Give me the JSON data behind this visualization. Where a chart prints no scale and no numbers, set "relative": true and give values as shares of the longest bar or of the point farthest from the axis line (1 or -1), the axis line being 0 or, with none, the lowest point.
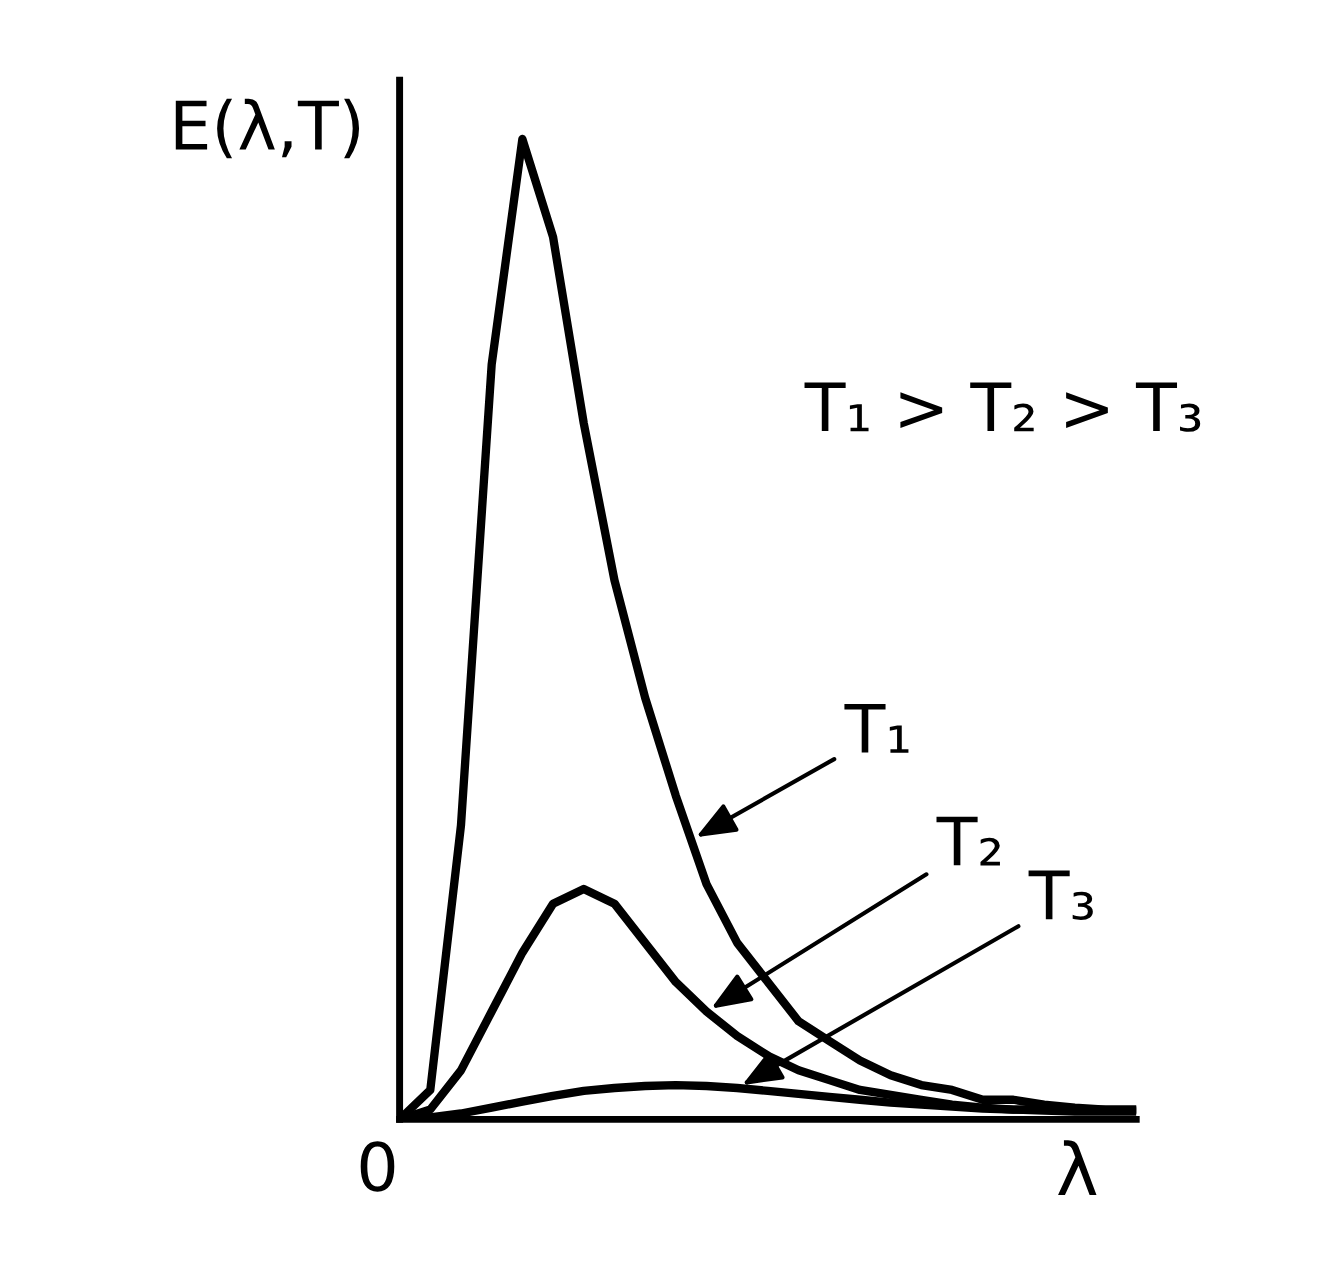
{
  "chart_data": {
    "type": "line",
    "relative": true,
    "ylabel": "E(λ,T)",
    "xlabel": "λ",
    "legend": "right",
    "grid": false,
    "marker": "none",
    "line_style": "solid",
    "categories": [
      null,
      null,
      null,
      null,
      null,
      null,
      null,
      null,
      null,
      null,
      null,
      null,
      null,
      null,
      null,
      null,
      null,
      null,
      null,
      null,
      null,
      null,
      null,
      null,
      null
    ],
    "series": [
      {
        "name": "T₁",
        "color": "#000000",
        "values": [
          0,
          0.03,
          0.3,
          0.77,
          1.0,
          0.9,
          0.71,
          0.55,
          0.43,
          0.33,
          0.24,
          0.18,
          0.14,
          0.1,
          0.08,
          0.06,
          0.045,
          0.035,
          0.03,
          0.02,
          0.02,
          0.015,
          0.012,
          0.01,
          0.01
        ]
      },
      {
        "name": "T₂",
        "color": "#000000",
        "values": [
          0,
          0.01,
          0.05,
          0.11,
          0.17,
          0.22,
          0.235,
          0.22,
          0.18,
          0.14,
          0.11,
          0.085,
          0.065,
          0.05,
          0.04,
          0.03,
          0.025,
          0.02,
          0.015,
          0.012,
          0.01,
          0.01,
          0.01,
          0.01,
          0.01
        ]
      },
      {
        "name": "T₃",
        "color": "#000000",
        "values": [
          0,
          0.002,
          0.006,
          0.012,
          0.018,
          0.024,
          0.029,
          0.032,
          0.034,
          0.035,
          0.034,
          0.032,
          0.029,
          0.026,
          0.023,
          0.02,
          0.017,
          0.015,
          0.013,
          0.011,
          0.01,
          0.009,
          0.008,
          0.008,
          0.008
        ]
      }
    ],
    "annotations": [
      "T₁ > T₂ > T₃",
      "0"
    ]
  }
}
